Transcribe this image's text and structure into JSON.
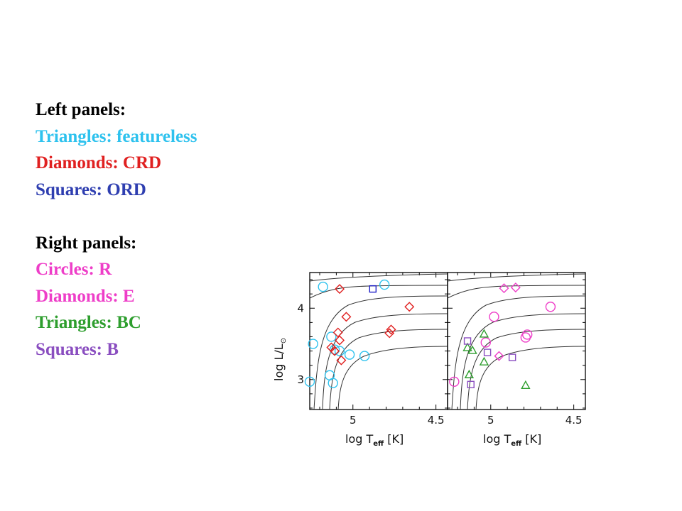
{
  "legend": {
    "left_heading": "Left panels:",
    "left_items": [
      {
        "text": "Triangles: featureless",
        "color": "#2ec2ee"
      },
      {
        "text": "Diamonds: CRD",
        "color": "#e02020"
      },
      {
        "text": "Squares: ORD",
        "color": "#2e3eb0"
      }
    ],
    "right_heading": "Right panels:",
    "right_items": [
      {
        "text": "Circles: R",
        "color": "#ee3ec8"
      },
      {
        "text": "Diamonds: E",
        "color": "#ee3ec8"
      },
      {
        "text": "Triangles: BC",
        "color": "#2e9e2e"
      },
      {
        "text": "Squares: B",
        "color": "#8a4ec0"
      }
    ]
  },
  "chart_data": [
    {
      "type": "scatter",
      "panel": "left",
      "xlabel": "log T_eff [K]",
      "ylabel": "log L/L_sun",
      "xlim": [
        5.26,
        4.43
      ],
      "ylim": [
        2.58,
        4.5
      ],
      "xticks": [
        5,
        4.5
      ],
      "yticks": [
        3,
        4
      ],
      "tracks": true,
      "series": [
        {
          "marker": "circle",
          "color": "#2ec2ee",
          "points": [
            [
              5.18,
              4.3
            ],
            [
              4.81,
              4.33
            ],
            [
              5.13,
              3.6
            ],
            [
              5.24,
              3.5
            ],
            [
              5.08,
              3.4
            ],
            [
              5.02,
              3.35
            ],
            [
              5.11,
              3.42
            ],
            [
              4.93,
              3.33
            ],
            [
              5.26,
              2.97
            ],
            [
              5.14,
              3.06
            ],
            [
              5.12,
              2.95
            ]
          ]
        },
        {
          "marker": "diamond",
          "color": "#e02020",
          "points": [
            [
              5.08,
              4.27
            ],
            [
              5.04,
              3.88
            ],
            [
              4.66,
              4.02
            ],
            [
              5.09,
              3.66
            ],
            [
              5.08,
              3.55
            ],
            [
              5.13,
              3.45
            ],
            [
              5.11,
              3.4
            ],
            [
              5.07,
              3.27
            ],
            [
              4.77,
              3.7
            ],
            [
              4.78,
              3.65
            ]
          ]
        },
        {
          "marker": "square",
          "color": "#2020c8",
          "points": [
            [
              4.88,
              4.27
            ]
          ]
        }
      ]
    },
    {
      "type": "scatter",
      "panel": "right",
      "xlabel": "log T_eff [K]",
      "ylabel": "",
      "xlim": [
        5.26,
        4.43
      ],
      "ylim": [
        2.58,
        4.5
      ],
      "xticks": [
        5,
        4.5
      ],
      "yticks": [],
      "tracks": true,
      "series": [
        {
          "marker": "circle",
          "color": "#ee3ec8",
          "points": [
            [
              4.98,
              3.88
            ],
            [
              4.64,
              4.02
            ],
            [
              4.78,
              3.63
            ],
            [
              4.79,
              3.59
            ],
            [
              5.03,
              3.52
            ],
            [
              5.22,
              2.97
            ]
          ]
        },
        {
          "marker": "diamond",
          "color": "#ee3ec8",
          "points": [
            [
              4.92,
              4.28
            ],
            [
              4.85,
              4.29
            ],
            [
              4.95,
              3.33
            ]
          ]
        },
        {
          "marker": "triangle",
          "color": "#2e9e2e",
          "points": [
            [
              5.04,
              3.64
            ],
            [
              5.14,
              3.45
            ],
            [
              5.11,
              3.41
            ],
            [
              5.04,
              3.25
            ],
            [
              5.13,
              3.07
            ],
            [
              4.79,
              2.92
            ]
          ]
        },
        {
          "marker": "square",
          "color": "#8a4ec0",
          "points": [
            [
              5.14,
              3.54
            ],
            [
              5.02,
              3.38
            ],
            [
              4.87,
              3.31
            ],
            [
              5.12,
              2.93
            ]
          ]
        }
      ]
    }
  ]
}
